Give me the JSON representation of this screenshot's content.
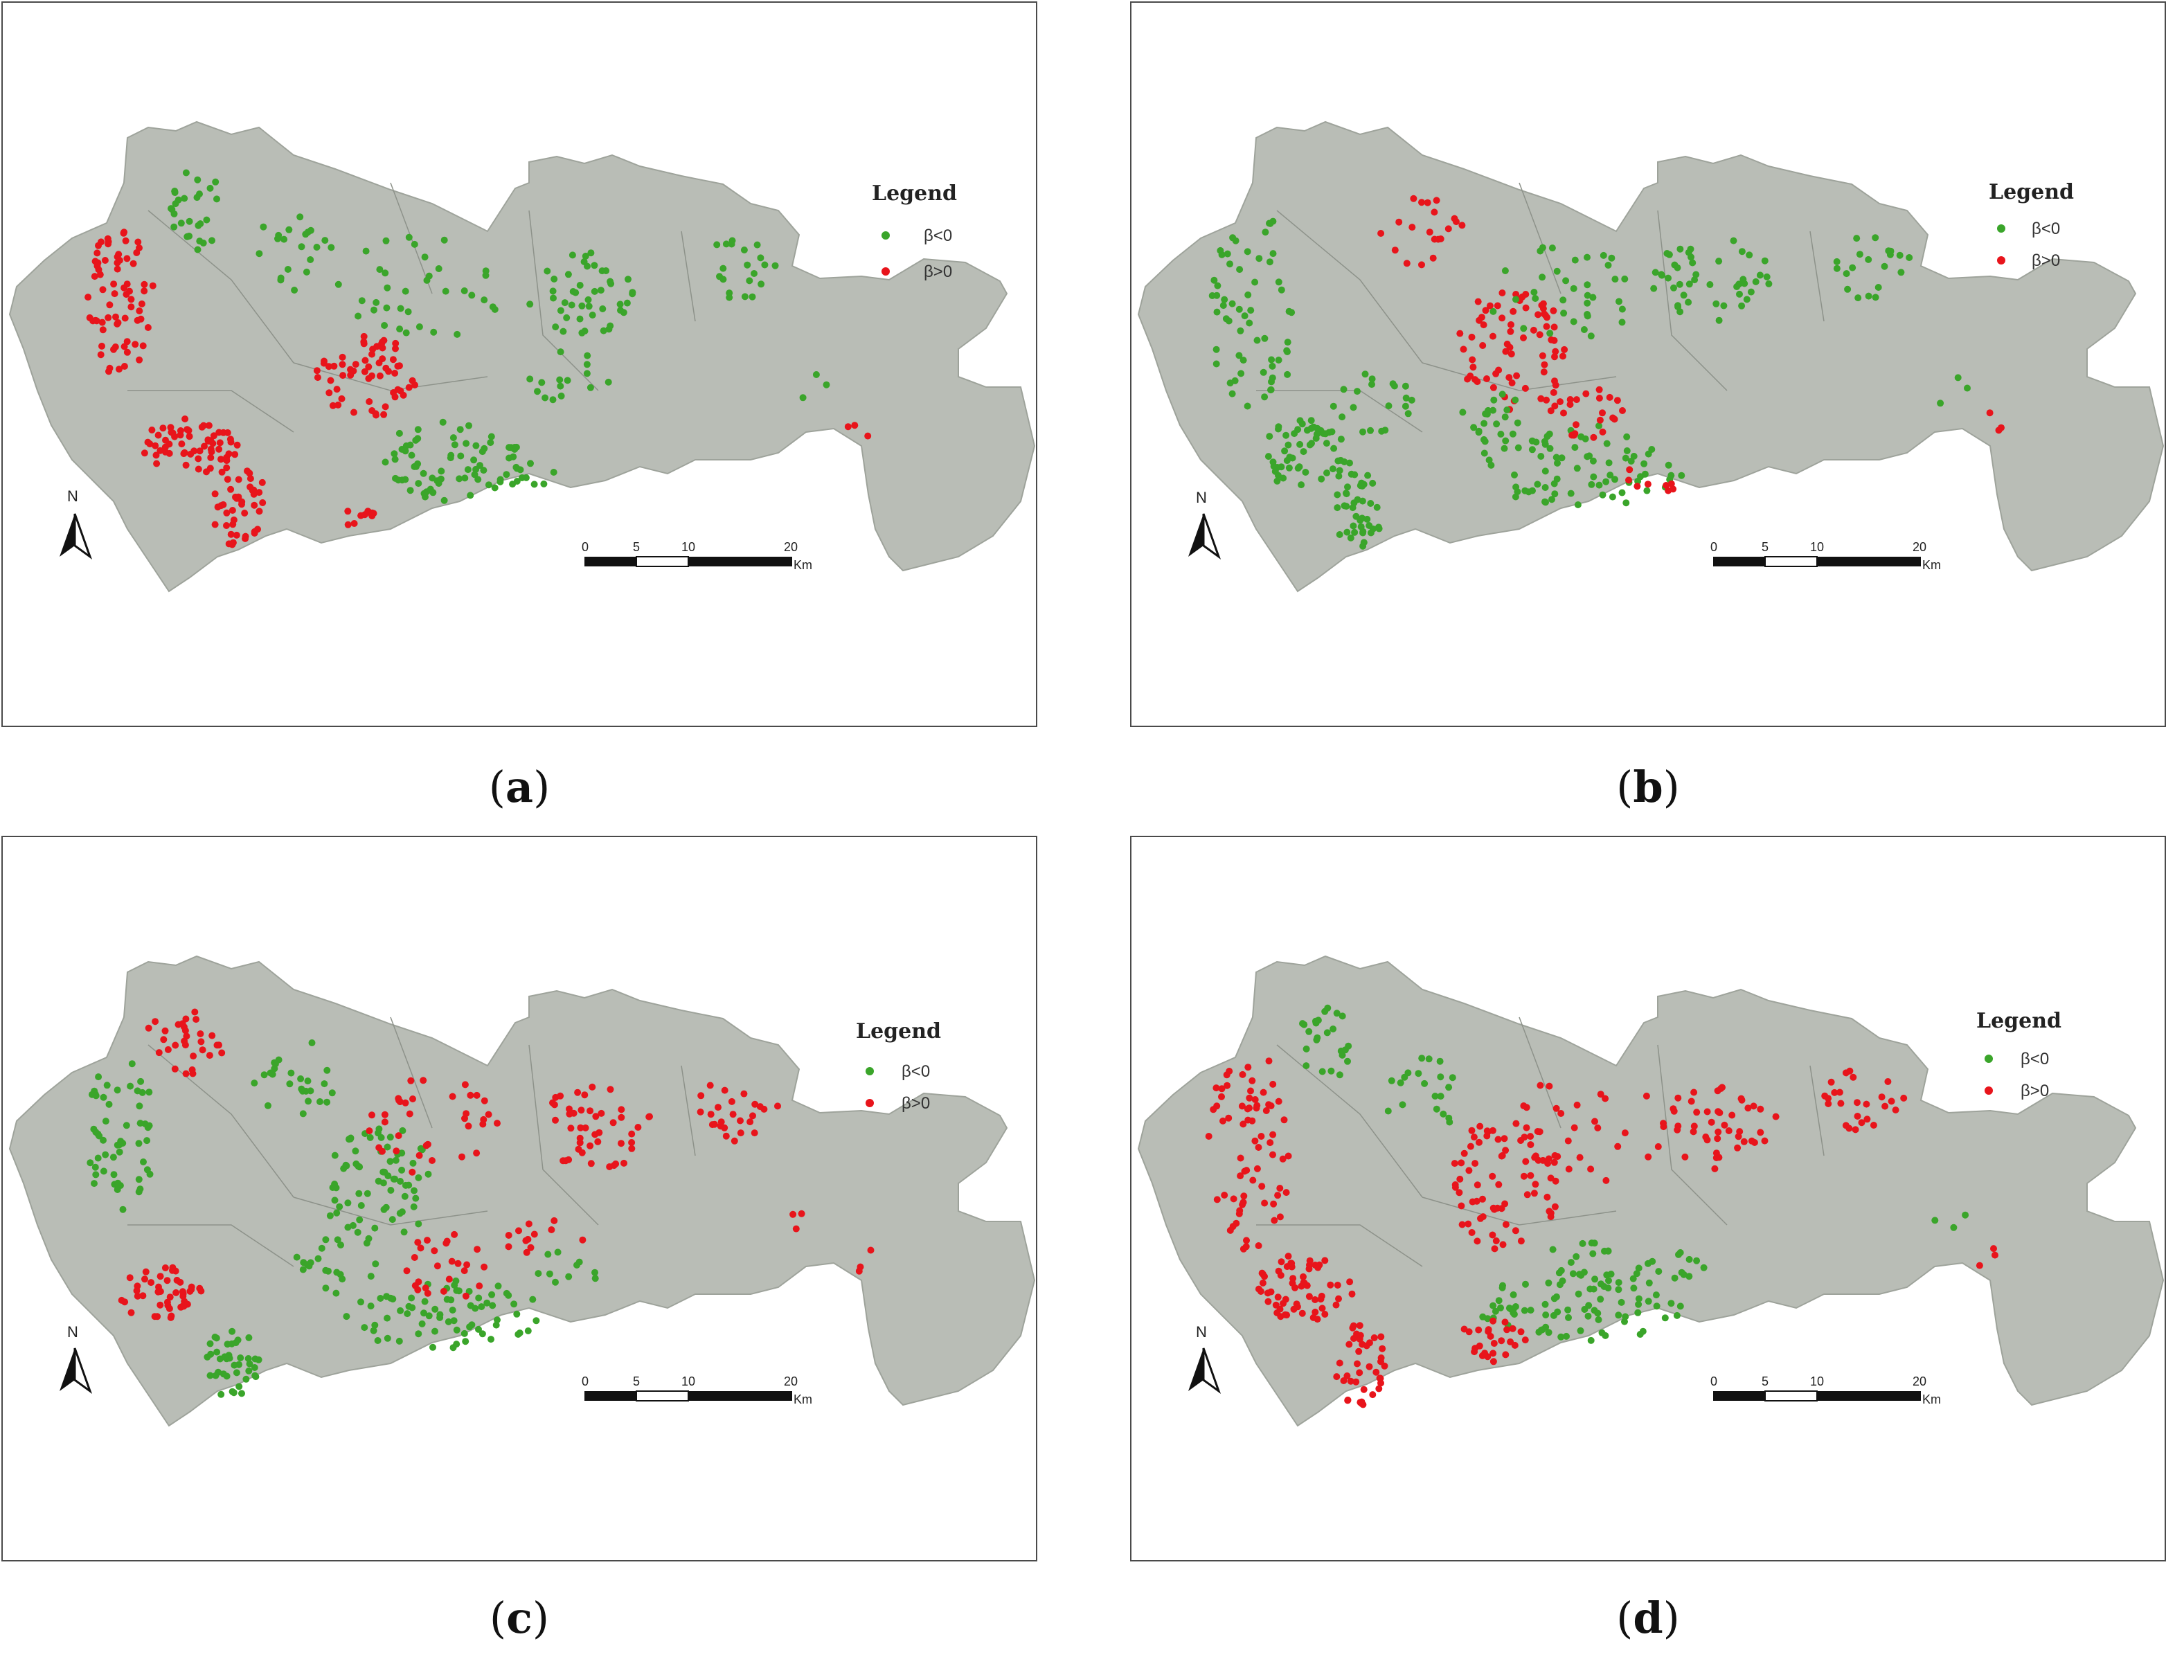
{
  "colors": {
    "negative": "#3aa52a",
    "positive": "#e8141b",
    "land": "#b9bdb6",
    "water": "#c9d4dc",
    "frame": "#4a4a4a"
  },
  "legend": {
    "title": "Legend",
    "negative_label": "β<0",
    "positive_label": "β>0"
  },
  "scale_bar": {
    "ticks": [
      "0",
      "5",
      "10",
      "20"
    ],
    "unit": "Km"
  },
  "north_arrow": {
    "label": "N"
  },
  "panels": [
    {
      "id": "a",
      "caption": "a",
      "pattern": "a"
    },
    {
      "id": "b",
      "caption": "b",
      "pattern": "b"
    },
    {
      "id": "c",
      "caption": "c",
      "pattern": "c"
    },
    {
      "id": "d",
      "caption": "d",
      "pattern": "d"
    }
  ]
}
